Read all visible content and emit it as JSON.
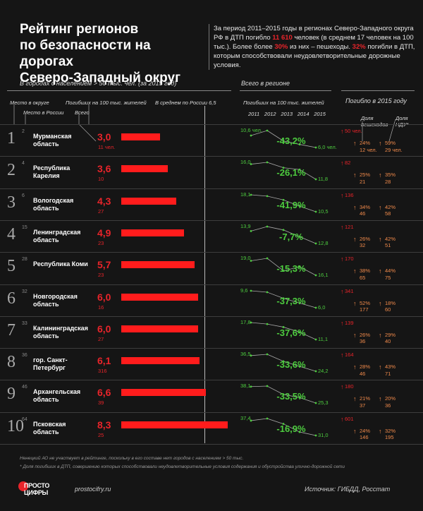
{
  "title": {
    "line1": "Рейтинг регионов",
    "line2": "по безопасности на дорогах",
    "line3": "Северо-Западный округ"
  },
  "intro": {
    "p1": "За период 2011–2015 годы в регионах Северо-Западного округа РФ в ДТП погибло ",
    "n1": "11 610",
    "p2": " человек (в среднем 17 человек на 100 тыс.). Более более ",
    "n2": "30%",
    "p3": " из них – пешеходы. ",
    "n3": "32%",
    "p4": " погибли в ДТП, которым способствовали неудовлетворительные дорожные условия."
  },
  "headers": {
    "cities": "В городах с населением > 50 тыс. чел. (за 2015 год)",
    "region": "Всего в регионе",
    "died2015": "Погибло в 2015 году",
    "place_okrug": "Место в округе",
    "place_russia": "Место в России",
    "died100k": "Погибших на 100 тыс. жителей",
    "total": "Всего",
    "avg_russia": "В среднем по России 6,5",
    "died100k_region": "Погибших на 100 тыс. жителей",
    "years": [
      "2011",
      "2012",
      "2013",
      "2014",
      "2015"
    ],
    "ped_share": "Доля пешеходов",
    "ndu_share": "Доля НДУ*"
  },
  "chart_data": {
    "type": "bar",
    "title": "Рейтинг регионов по безопасности на дорогах. Северо-Западный округ",
    "russia_avg": 6.5,
    "xlim": [
      0,
      8.5
    ],
    "rows": [
      {
        "rank": "1",
        "rank_russia": "2",
        "name": "Мурманская область",
        "rate": 3.0,
        "rate_label": "3,0",
        "deaths": "11 чел.",
        "spark": [
          10.6,
          12.5,
          8.5,
          7.2,
          6.0
        ],
        "v_start": "10,6 чел.",
        "v_end": "6,0 чел.",
        "pct": "-43,2%",
        "total": "50 чел.",
        "ped_pct": "24%",
        "ped_n": "12 чел.",
        "ndu_pct": "59%",
        "ndu_n": "29 чел."
      },
      {
        "rank": "2",
        "rank_russia": "4",
        "name": "Республика Карелия",
        "rate": 3.6,
        "rate_label": "3,6",
        "deaths": "10",
        "spark": [
          16.0,
          16.5,
          15.0,
          14.5,
          11.8
        ],
        "v_start": "16,0",
        "v_end": "11,8",
        "pct": "-26,1%",
        "total": "82",
        "ped_pct": "25%",
        "ped_n": "21",
        "ndu_pct": "35%",
        "ndu_n": "28"
      },
      {
        "rank": "3",
        "rank_russia": "6",
        "name": "Вологодская область",
        "rate": 4.3,
        "rate_label": "4,3",
        "deaths": "27",
        "spark": [
          18.1,
          17.5,
          15.8,
          13.0,
          10.5
        ],
        "v_start": "18,1",
        "v_end": "10,5",
        "pct": "-41,9%",
        "total": "136",
        "ped_pct": "34%",
        "ped_n": "46",
        "ndu_pct": "42%",
        "ndu_n": "58"
      },
      {
        "rank": "4",
        "rank_russia": "15",
        "name": "Ленинградская область",
        "rate": 4.9,
        "rate_label": "4,9",
        "deaths": "23",
        "spark": [
          13.9,
          14.3,
          14.0,
          13.4,
          12.8
        ],
        "v_start": "13,9",
        "v_end": "12,8",
        "pct": "-7,7%",
        "total": "121",
        "ped_pct": "26%",
        "ped_n": "32",
        "ndu_pct": "42%",
        "ndu_n": "51"
      },
      {
        "rank": "5",
        "rank_russia": "28",
        "name": "Республика Коми",
        "rate": 5.7,
        "rate_label": "5,7",
        "deaths": "23",
        "spark": [
          19.0,
          19.5,
          17.0,
          17.8,
          16.1
        ],
        "v_start": "19,0",
        "v_end": "16,1",
        "pct": "-15,3%",
        "total": "170",
        "ped_pct": "38%",
        "ped_n": "65",
        "ndu_pct": "44%",
        "ndu_n": "75"
      },
      {
        "rank": "6",
        "rank_russia": "32",
        "name": "Новгородская область",
        "rate": 6.0,
        "rate_label": "6,0",
        "deaths": "16",
        "spark": [
          9.6,
          9.3,
          8.0,
          7.0,
          6.0
        ],
        "v_start": "9,6",
        "v_end": "6,0",
        "pct": "-37,3%",
        "total": "341",
        "ped_pct": "52%",
        "ped_n": "177",
        "ndu_pct": "18%",
        "ndu_n": "60"
      },
      {
        "rank": "7",
        "rank_russia": "33",
        "name": "Калининградская область",
        "rate": 6.0,
        "rate_label": "6,0",
        "deaths": "27",
        "spark": [
          17.8,
          17.2,
          16.0,
          14.0,
          11.1
        ],
        "v_start": "17,8",
        "v_end": "11,1",
        "pct": "-37,6%",
        "total": "139",
        "ped_pct": "26%",
        "ped_n": "36",
        "ndu_pct": "29%",
        "ndu_n": "40"
      },
      {
        "rank": "8",
        "rank_russia": "36",
        "name": "гор. Санкт-Петербург",
        "rate": 6.1,
        "rate_label": "6,1",
        "deaths": "316",
        "spark": [
          36.5,
          37.5,
          32.0,
          28.0,
          24.2
        ],
        "v_start": "36,5",
        "v_end": "24,2",
        "pct": "-33,6%",
        "total": "164",
        "ped_pct": "28%",
        "ped_n": "46",
        "ndu_pct": "43%",
        "ndu_n": "71"
      },
      {
        "rank": "9",
        "rank_russia": "46",
        "name": "Архангельская область",
        "rate": 6.6,
        "rate_label": "6,6",
        "deaths": "39",
        "spark": [
          38.1,
          38.5,
          32.0,
          29.5,
          25.3
        ],
        "v_start": "38,1",
        "v_end": "25,3",
        "pct": "-33,5%",
        "total": "180",
        "ped_pct": "21%",
        "ped_n": "37",
        "ndu_pct": "20%",
        "ndu_n": "36"
      },
      {
        "rank": "10",
        "rank_russia": "64",
        "name": "Псковская область",
        "rate": 8.3,
        "rate_label": "8,3",
        "deaths": "25",
        "spark": [
          37.4,
          38.3,
          36.0,
          32.5,
          31.0
        ],
        "v_start": "37,4",
        "v_end": "31,0",
        "pct": "-16,9%",
        "total": "601",
        "ped_pct": "24%",
        "ped_n": "146",
        "ndu_pct": "32%",
        "ndu_n": "195"
      }
    ]
  },
  "colors": {
    "bar": "#ff1c1c",
    "accent": "#e8242a",
    "green": "#4dcc3f",
    "orange": "#f08a4b"
  },
  "footer": {
    "note1": "Ненецкий АО не участвует в рейтинге, поскольку в его составе нет городов с населением > 50 тыс.",
    "note2": "* Доля погибших в ДТП, совершению которых способствовали неудовлетворительные условия содержания и обустройства улично-дорожной сети",
    "logo1": "ПРОСТО",
    "logo2": "ЦИФРЫ",
    "site": "prostocifry.ru",
    "source": "Источник: ГИБДД, Росстат"
  }
}
